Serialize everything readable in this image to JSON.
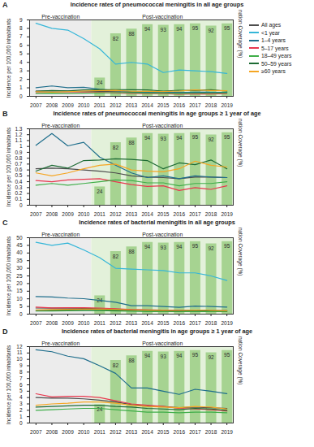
{
  "chart_data": [
    {
      "label": "A",
      "title": "Incidence rates of pneumococcal meningitis in all age groups",
      "type": "line",
      "x": [
        2007,
        2008,
        2009,
        2010,
        2011,
        2012,
        2013,
        2014,
        2015,
        2016,
        2017,
        2018,
        2019
      ],
      "xlim": [
        2006.6,
        2019.4
      ],
      "xticks": [
        2007,
        2008,
        2009,
        2010,
        2011,
        2012,
        2013,
        2014,
        2015,
        2016,
        2017,
        2018,
        2019
      ],
      "ylim": [
        0,
        9
      ],
      "yticks": [
        0,
        1,
        2,
        3,
        4,
        5,
        6,
        7,
        8,
        9
      ],
      "ylabel": "Incidence per 100,000 inhabitants",
      "y2lim": [
        0,
        100
      ],
      "y2ticks": [],
      "y2label": "Vaccination Coverage (%)",
      "annotations": [
        "Pre-vaccination",
        "Post-vaccination"
      ],
      "grid": false,
      "legend": "right",
      "series": [
        {
          "type": "bar",
          "axis": "y2",
          "color": "#a6d391",
          "data_labels": true,
          "values": [
            null,
            null,
            null,
            null,
            24,
            82,
            88,
            94,
            93,
            94,
            95,
            92,
            95
          ]
        },
        {
          "name": "All ages",
          "color": "#4d4d4d",
          "values": [
            0.62,
            0.63,
            0.62,
            0.6,
            0.58,
            0.55,
            0.5,
            0.48,
            0.47,
            0.45,
            0.48,
            0.48,
            0.47
          ]
        },
        {
          "name": "<1 year",
          "color": "#35b6d8",
          "values": [
            8.6,
            8.0,
            7.8,
            6.8,
            5.6,
            3.8,
            4.0,
            3.8,
            2.8,
            3.1,
            3.0,
            2.9,
            2.7
          ]
        },
        {
          "name": "1–4 years",
          "color": "#1f6e8c",
          "values": [
            1.02,
            1.22,
            1.01,
            1.07,
            0.82,
            0.68,
            0.55,
            0.47,
            0.5,
            0.45,
            0.5,
            0.48,
            0.47
          ]
        },
        {
          "name": "5–17 years",
          "color": "#e8384f",
          "values": [
            0.42,
            0.4,
            0.43,
            0.44,
            0.45,
            0.4,
            0.35,
            0.32,
            0.33,
            0.25,
            0.3,
            0.27,
            0.33
          ]
        },
        {
          "name": "18–49 years",
          "color": "#3fae49",
          "values": [
            0.34,
            0.37,
            0.34,
            0.37,
            0.4,
            0.43,
            0.42,
            0.38,
            0.38,
            0.33,
            0.37,
            0.37,
            0.4
          ]
        },
        {
          "name": "50–59 years",
          "color": "#1d6b34",
          "values": [
            0.58,
            0.68,
            0.63,
            0.76,
            0.77,
            0.79,
            0.78,
            0.76,
            0.62,
            0.72,
            0.69,
            0.77,
            0.62
          ]
        },
        {
          "name": "≥60 years",
          "color": "#f5a623",
          "values": [
            0.55,
            0.5,
            0.55,
            0.62,
            0.68,
            0.7,
            0.6,
            0.58,
            0.57,
            0.62,
            0.75,
            0.68,
            0.65
          ]
        }
      ]
    },
    {
      "label": "B",
      "title": "Incidence rates of pneumococcal meningitis in age groups ≥ 1 year of age",
      "type": "line",
      "x": [
        2007,
        2008,
        2009,
        2010,
        2011,
        2012,
        2013,
        2014,
        2015,
        2016,
        2017,
        2018,
        2019
      ],
      "xlim": [
        2006.6,
        2019.4
      ],
      "xticks": [
        2007,
        2008,
        2009,
        2010,
        2011,
        2012,
        2013,
        2014,
        2015,
        2016,
        2017,
        2018,
        2019
      ],
      "ylim": [
        0,
        1.3
      ],
      "yticks": [
        0,
        0.1,
        0.2,
        0.3,
        0.4,
        0.5,
        0.6,
        0.7,
        0.8,
        0.9,
        1,
        1.1,
        1.2,
        1.3
      ],
      "ylabel": "Incidence per 100,000 inhabitants",
      "y2lim": [
        0,
        100
      ],
      "y2ticks": [],
      "y2label": "Vaccination Coverage (%)",
      "annotations": [
        "Pre-vaccination",
        "Post-vaccination"
      ],
      "grid": false,
      "series": [
        {
          "type": "bar",
          "axis": "y2",
          "color": "#a6d391",
          "data_labels": true,
          "values": [
            null,
            null,
            null,
            null,
            24,
            82,
            88,
            94,
            93,
            94,
            95,
            92,
            95
          ]
        },
        {
          "name": "All ages",
          "color": "#4d4d4d",
          "values": [
            0.62,
            0.63,
            0.62,
            0.6,
            0.58,
            0.55,
            0.5,
            0.48,
            0.47,
            0.45,
            0.48,
            0.48,
            0.47
          ]
        },
        {
          "name": "1–4 years",
          "color": "#1f6e8c",
          "values": [
            1.02,
            1.22,
            1.01,
            1.07,
            0.82,
            0.68,
            0.55,
            0.47,
            0.5,
            0.45,
            0.5,
            0.48,
            0.47
          ]
        },
        {
          "name": "5–17 years",
          "color": "#e8384f",
          "values": [
            0.42,
            0.4,
            0.43,
            0.44,
            0.45,
            0.4,
            0.35,
            0.32,
            0.33,
            0.25,
            0.3,
            0.27,
            0.33
          ]
        },
        {
          "name": "18–49 years",
          "color": "#3fae49",
          "values": [
            0.34,
            0.37,
            0.34,
            0.37,
            0.4,
            0.43,
            0.42,
            0.38,
            0.38,
            0.33,
            0.37,
            0.37,
            0.4
          ]
        },
        {
          "name": "50–59 years",
          "color": "#1d6b34",
          "values": [
            0.58,
            0.68,
            0.63,
            0.76,
            0.77,
            0.79,
            0.78,
            0.76,
            0.62,
            0.72,
            0.69,
            0.77,
            0.62
          ]
        },
        {
          "name": "≥60 years",
          "color": "#f5a623",
          "values": [
            0.55,
            0.5,
            0.55,
            0.62,
            0.68,
            0.7,
            0.6,
            0.58,
            0.57,
            0.62,
            0.75,
            0.68,
            0.65
          ]
        }
      ]
    },
    {
      "label": "C",
      "title": "Incidence rates of bacterial meningitis in all age groups",
      "type": "line",
      "x": [
        2007,
        2008,
        2009,
        2010,
        2011,
        2012,
        2013,
        2014,
        2015,
        2016,
        2017,
        2018,
        2019
      ],
      "xlim": [
        2006.6,
        2019.4
      ],
      "xticks": [
        2007,
        2008,
        2009,
        2010,
        2011,
        2012,
        2013,
        2014,
        2015,
        2016,
        2017,
        2018,
        2019
      ],
      "ylim": [
        0,
        50
      ],
      "yticks": [
        0,
        5,
        10,
        15,
        20,
        25,
        30,
        35,
        40,
        45,
        50
      ],
      "ylabel": "Incidence per 100,000 inhabitants",
      "y2lim": [
        0,
        100
      ],
      "y2ticks": [],
      "y2label": "Vaccination Coverage (%)",
      "annotations": [
        "Pre-vaccination",
        "Post-vaccination"
      ],
      "grid": false,
      "series": [
        {
          "type": "bar",
          "axis": "y2",
          "color": "#a6d391",
          "data_labels": true,
          "values": [
            null,
            null,
            null,
            null,
            24,
            82,
            88,
            94,
            93,
            94,
            95,
            92,
            95
          ]
        },
        {
          "name": "All ages",
          "color": "#4d4d4d",
          "values": [
            4.0,
            3.9,
            3.9,
            3.8,
            3.6,
            3.3,
            2.9,
            2.7,
            2.6,
            2.4,
            2.5,
            2.4,
            2.3
          ]
        },
        {
          "name": "<1 year",
          "color": "#35b6d8",
          "values": [
            47,
            45,
            46.5,
            42,
            37,
            30,
            29.5,
            29,
            28.5,
            27,
            27,
            25,
            22
          ]
        },
        {
          "name": "1–4 years",
          "color": "#1f6e8c",
          "values": [
            11.5,
            11.2,
            10.5,
            10.1,
            9.0,
            7.8,
            5.5,
            5.5,
            5.0,
            4.5,
            5.3,
            5.0,
            4.6
          ]
        },
        {
          "name": "5–17 years",
          "color": "#e8384f",
          "values": [
            4.6,
            4.1,
            4.2,
            4.2,
            4.0,
            3.5,
            3.0,
            2.8,
            2.6,
            2.3,
            2.2,
            2.1,
            1.9
          ]
        },
        {
          "name": "18–49 years",
          "color": "#3fae49",
          "values": [
            2.0,
            2.1,
            2.2,
            2.3,
            2.3,
            2.1,
            1.9,
            1.7,
            1.7,
            1.6,
            1.7,
            1.7,
            1.6
          ]
        },
        {
          "name": "50–59 years",
          "color": "#1d6b34",
          "values": [
            2.5,
            2.6,
            2.7,
            2.8,
            2.8,
            2.6,
            2.5,
            2.3,
            2.2,
            2.1,
            2.3,
            2.2,
            2.0
          ]
        },
        {
          "name": "≥60 years",
          "color": "#f5a623",
          "values": [
            2.8,
            3.0,
            3.1,
            3.3,
            3.3,
            3.1,
            2.8,
            2.6,
            2.5,
            2.4,
            2.6,
            2.5,
            2.2
          ]
        }
      ]
    },
    {
      "label": "D",
      "title": "Incidence rates of bacterial meningitis in age groups ≥ 1 year of age",
      "type": "line",
      "x": [
        2007,
        2008,
        2009,
        2010,
        2011,
        2012,
        2013,
        2014,
        2015,
        2016,
        2017,
        2018,
        2019
      ],
      "xlim": [
        2006.6,
        2019.4
      ],
      "xticks": [
        2007,
        2008,
        2009,
        2010,
        2011,
        2012,
        2013,
        2014,
        2015,
        2016,
        2017,
        2018,
        2019
      ],
      "ylim": [
        0,
        12
      ],
      "yticks": [
        0,
        1,
        2,
        3,
        4,
        5,
        6,
        7,
        8,
        9,
        10,
        11,
        12
      ],
      "ylabel": "Incidence per 100,000 inhabitants",
      "y2lim": [
        0,
        100
      ],
      "y2ticks": [],
      "y2label": "Vaccination Coverage (%)",
      "annotations": [
        "Pre-vaccination",
        "Post-vaccination"
      ],
      "grid": false,
      "series": [
        {
          "type": "bar",
          "axis": "y2",
          "color": "#a6d391",
          "data_labels": true,
          "values": [
            null,
            null,
            null,
            null,
            24,
            82,
            88,
            94,
            93,
            94,
            95,
            92,
            95
          ]
        },
        {
          "name": "All ages",
          "color": "#4d4d4d",
          "values": [
            4.0,
            3.9,
            3.9,
            3.8,
            3.6,
            3.3,
            2.9,
            2.7,
            2.6,
            2.4,
            2.5,
            2.4,
            2.3
          ]
        },
        {
          "name": "1–4 years",
          "color": "#1f6e8c",
          "values": [
            11.5,
            11.2,
            10.5,
            10.1,
            9.0,
            7.8,
            5.5,
            5.5,
            5.0,
            4.5,
            5.3,
            5.0,
            4.6
          ]
        },
        {
          "name": "5–17 years",
          "color": "#e8384f",
          "values": [
            4.6,
            4.1,
            4.2,
            4.2,
            4.0,
            3.5,
            3.0,
            2.8,
            2.6,
            2.3,
            2.2,
            2.1,
            1.9
          ]
        },
        {
          "name": "18–49 years",
          "color": "#3fae49",
          "values": [
            2.0,
            2.1,
            2.2,
            2.3,
            2.3,
            2.1,
            1.9,
            1.7,
            1.7,
            1.6,
            1.7,
            1.7,
            1.6
          ]
        },
        {
          "name": "50–59 years",
          "color": "#1d6b34",
          "values": [
            2.5,
            2.6,
            2.7,
            2.8,
            2.8,
            2.6,
            2.5,
            2.3,
            2.2,
            2.1,
            2.3,
            2.2,
            2.0
          ]
        },
        {
          "name": "≥60 years",
          "color": "#f5a623",
          "values": [
            2.8,
            3.0,
            3.1,
            3.3,
            3.3,
            3.1,
            2.8,
            2.6,
            2.5,
            2.4,
            2.6,
            2.5,
            2.2
          ]
        }
      ]
    }
  ]
}
